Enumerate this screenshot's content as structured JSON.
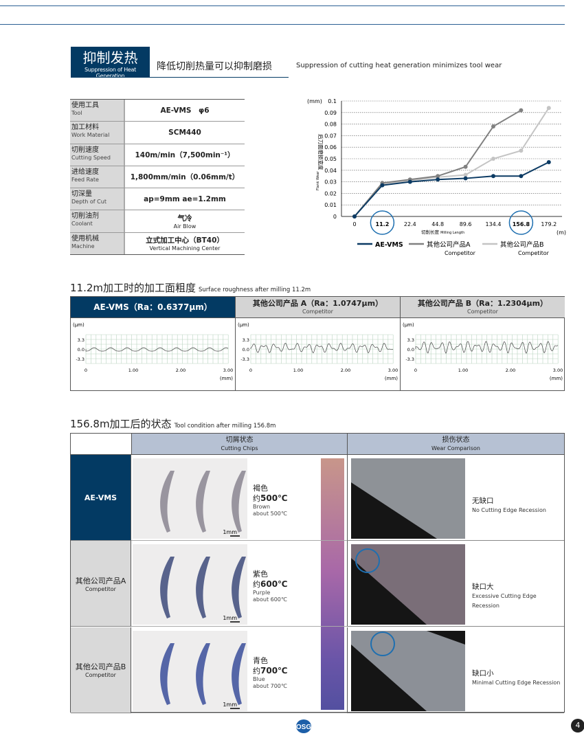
{
  "header": {
    "badge_title": "抑制发热",
    "badge_subtitle": "Suppression of Heat Generation",
    "title_cn": "降低切削热量可以抑制磨损",
    "title_en": "Suppression of cutting heat generation minimizes tool wear"
  },
  "spec": [
    {
      "label": "使用工具",
      "label_en": "Tool",
      "value": "AE-VMS　φ6",
      "value_sub": ""
    },
    {
      "label": "加工材料",
      "label_en": "Work Material",
      "value": "SCM440",
      "value_sub": ""
    },
    {
      "label": "切削速度",
      "label_en": "Cutting Speed",
      "value": "140m/min（7,500min⁻¹）",
      "value_sub": ""
    },
    {
      "label": "进给速度",
      "label_en": "Feed Rate",
      "value": "1,800mm/min（0.06mm/t）",
      "value_sub": ""
    },
    {
      "label": "切深量",
      "label_en": "Depth of Cut",
      "value": "ap=9mm ae=1.2mm",
      "value_sub": ""
    },
    {
      "label": "切削油剂",
      "label_en": "Coolant",
      "value": "气冷",
      "value_sub": "Air Blow"
    },
    {
      "label": "使用机械",
      "label_en": "Machine",
      "value": "立式加工中心（BT40）",
      "value_sub": "Vertical Machining Center"
    }
  ],
  "chart_data": {
    "type": "line",
    "ylabel": "后刀面磨损宽度",
    "ylabel_en": "Flank Wear",
    "yunit": "(mm)",
    "xlabel": "切削长度",
    "xlabel_en": "Milling Length",
    "xunit": "(m)",
    "categories": [
      "0",
      "11.2",
      "22.4",
      "44.8",
      "89.6",
      "134.4",
      "156.8",
      "179.2"
    ],
    "highlighted": [
      "11.2",
      "156.8"
    ],
    "ylim": [
      0,
      0.1
    ],
    "yticks": [
      "0",
      "0.01",
      "0.02",
      "0.03",
      "0.04",
      "0.05",
      "0.06",
      "0.07",
      "0.08",
      "0.09",
      "0.1"
    ],
    "grid": "horizontal dotted",
    "legend_position": "bottom",
    "series": [
      {
        "name": "AE-VMS",
        "sub": "",
        "color": "#0b3a63",
        "values": [
          0,
          0.027,
          0.03,
          0.032,
          0.033,
          0.035,
          0.035,
          0.047
        ]
      },
      {
        "name": "其他公司产品A",
        "sub": "Competitor",
        "color": "#808080",
        "values": [
          0,
          0.029,
          0.032,
          0.035,
          0.043,
          0.078,
          0.092,
          null
        ]
      },
      {
        "name": "其他公司产品B",
        "sub": "Competitor",
        "color": "#c4c4c4",
        "values": [
          0,
          0.028,
          0.031,
          0.034,
          0.036,
          0.05,
          0.057,
          0.094
        ]
      }
    ]
  },
  "roughness": {
    "title": "11.2m加工时的加工面粗度",
    "title_en": "Surface roughness after milling 11.2m",
    "unit": "(μm)",
    "xunit": "(mm)",
    "yticks": [
      "3.3",
      "0.0",
      "-3.3"
    ],
    "xticks": [
      "0",
      "1.00",
      "2.00",
      "3.00"
    ],
    "cols": [
      {
        "name": "AE-VMS（Ra：0.6377μm）",
        "sub": ""
      },
      {
        "name": "其他公司产品 A（Ra：1.0747μm）",
        "sub": "Competitor"
      },
      {
        "name": "其他公司产品 B（Ra：1.2304μm）",
        "sub": "Competitor"
      }
    ]
  },
  "condition": {
    "title": "156.8m加工后的状态",
    "title_en": "Tool condition after milling 156.8m",
    "col_chips": "切屑状态",
    "col_chips_en": "Cutting Chips",
    "col_wear": "损伤状态",
    "col_wear_en": "Wear Comparison",
    "scale": "1mm",
    "rows": [
      {
        "name": "AE-VMS",
        "sub": "",
        "color_cn": "褐色",
        "temp_prefix": "约",
        "temp": "500℃",
        "color_en": "Brown",
        "temp_en": "about 500℃",
        "wear": "无缺口",
        "wear_en": "No Cutting Edge Recession",
        "chip_color": "#8a8590"
      },
      {
        "name": "其他公司产品A",
        "sub": "Competitor",
        "color_cn": "紫色",
        "temp_prefix": "约",
        "temp": "600℃",
        "color_en": "Purple",
        "temp_en": "about 600℃",
        "wear": "缺口大",
        "wear_en": "Excessive Cutting Edge Recession",
        "chip_color": "#3d4a7a"
      },
      {
        "name": "其他公司产品B",
        "sub": "Competitor",
        "color_cn": "青色",
        "temp_prefix": "约",
        "temp": "700℃",
        "color_en": "Blue",
        "temp_en": "about 700℃",
        "wear": "缺口小",
        "wear_en": "Minimal Cutting Edge Recession",
        "chip_color": "#3a4d9a"
      }
    ]
  },
  "footer": {
    "page": "4",
    "logo": "OSG"
  }
}
